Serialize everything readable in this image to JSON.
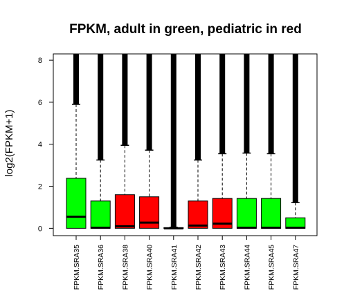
{
  "chart_data": {
    "type": "boxplot",
    "title": "FPKM, adult in green, pediatric in red",
    "xlabel": "",
    "ylabel": "log2(FPKM+1)",
    "ylim": [
      -0.35,
      8.3
    ],
    "yticks": [
      0,
      2,
      4,
      6,
      8
    ],
    "grid": false,
    "legend": "none",
    "colors": {
      "adult": "#00ff00",
      "pediatric": "#ff0000",
      "outliers": "#000000"
    },
    "categories": [
      "FPKM.SRA35",
      "FPKM.SRA36",
      "FPKM.SRA38",
      "FPKM.SRA40",
      "FPKM.SRA41",
      "FPKM.SRA42",
      "FPKM.SRA43",
      "FPKM.SRA44",
      "FPKM.SRA45",
      "FPKM.SRA47"
    ],
    "groups": [
      "adult",
      "adult",
      "pediatric",
      "pediatric",
      "pediatric",
      "pediatric",
      "pediatric",
      "adult",
      "adult",
      "adult"
    ],
    "series": [
      {
        "category": "FPKM.SRA35",
        "min": 0,
        "q1": 0.0,
        "median": 0.55,
        "q3": 2.38,
        "whisker_high": 5.9
      },
      {
        "category": "FPKM.SRA36",
        "min": 0,
        "q1": 0.0,
        "median": 0.03,
        "q3": 1.3,
        "whisker_high": 3.25
      },
      {
        "category": "FPKM.SRA38",
        "min": 0,
        "q1": 0.0,
        "median": 0.1,
        "q3": 1.6,
        "whisker_high": 3.95
      },
      {
        "category": "FPKM.SRA40",
        "min": 0,
        "q1": 0.0,
        "median": 0.27,
        "q3": 1.5,
        "whisker_high": 3.72
      },
      {
        "category": "FPKM.SRA41",
        "min": 0,
        "q1": 0.0,
        "median": 0.0,
        "q3": 0.03,
        "whisker_high": 0.05
      },
      {
        "category": "FPKM.SRA42",
        "min": 0,
        "q1": 0.0,
        "median": 0.13,
        "q3": 1.3,
        "whisker_high": 3.25
      },
      {
        "category": "FPKM.SRA43",
        "min": 0,
        "q1": 0.0,
        "median": 0.22,
        "q3": 1.42,
        "whisker_high": 3.55
      },
      {
        "category": "FPKM.SRA44",
        "min": 0,
        "q1": 0.0,
        "median": 0.03,
        "q3": 1.42,
        "whisker_high": 3.58
      },
      {
        "category": "FPKM.SRA45",
        "min": 0,
        "q1": 0.0,
        "median": 0.03,
        "q3": 1.42,
        "whisker_high": 3.55
      },
      {
        "category": "FPKM.SRA47",
        "min": 0,
        "q1": 0.0,
        "median": 0.03,
        "q3": 0.5,
        "whisker_high": 1.22
      }
    ]
  }
}
